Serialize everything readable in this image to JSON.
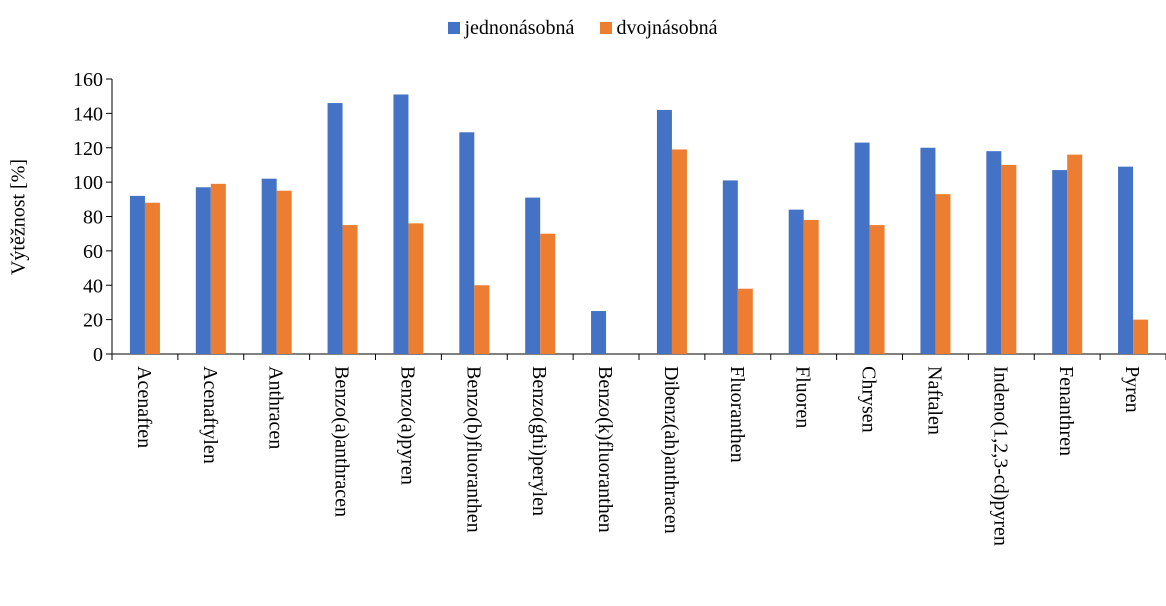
{
  "chart_data": {
    "type": "bar",
    "title": "",
    "xlabel": "",
    "ylabel": "Výtěžnost [%]",
    "ylim": [
      0,
      160
    ],
    "yticks": [
      0,
      20,
      40,
      60,
      80,
      100,
      120,
      140,
      160
    ],
    "grid": false,
    "legend_position": "top-center",
    "categories": [
      "Acenaften",
      "Acenaftylen",
      "Anthracen",
      "Benzo(a)anthracen",
      "Benzo(a)pyren",
      "Benzo(b)fluoranthen",
      "Benzo(ghi)perylen",
      "Benzo(k)fluoranthen",
      "Dibenz(ah)anthracen",
      "Fluoranthen",
      "Fluoren",
      "Chrysen",
      "Naftalen",
      "Indeno(1,2,3-cd)pyren",
      "Fenanthren",
      "Pyren"
    ],
    "series": [
      {
        "name": "jednonásobná",
        "color": "#4472C4",
        "values": [
          92,
          97,
          102,
          146,
          151,
          129,
          91,
          25,
          142,
          101,
          84,
          123,
          120,
          118,
          107,
          109
        ]
      },
      {
        "name": "dvojnásobná",
        "color": "#ED7D31",
        "values": [
          88,
          99,
          95,
          75,
          76,
          40,
          70,
          null,
          119,
          38,
          78,
          75,
          93,
          110,
          116,
          20
        ]
      }
    ]
  }
}
